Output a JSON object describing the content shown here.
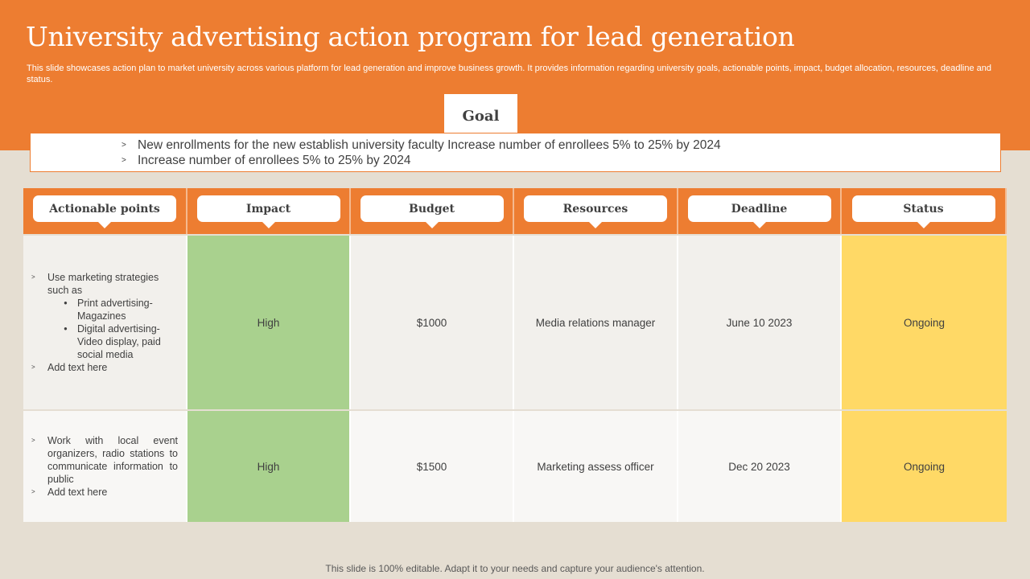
{
  "slide": {
    "title": "University advertising action program for lead generation",
    "subtitle": "This slide showcases action plan to market university across various platform for lead generation and improve business growth. It provides information regarding university goals, actionable points, impact, budget allocation, resources, deadline and status.",
    "footer": "This slide is 100% editable. Adapt it to your needs and capture your audience's attention."
  },
  "goal": {
    "label": "Goal",
    "items": [
      "New enrollments  for  the new establish university  faculty  Increase  number  of enrollees  5% to 25% by 2024",
      "Increase  number  of enrollees  5% to 25% by 2024"
    ]
  },
  "table": {
    "headers": [
      "Actionable points",
      "Impact",
      "Budget",
      "Resources",
      "Deadline",
      "Status"
    ],
    "rows": [
      {
        "actions": {
          "point1": "Use marketing strategies such as",
          "sub1": "Print advertising- Magazines",
          "sub2": "Digital advertising- Video display, paid social media",
          "point2": "Add text here"
        },
        "impact": "High",
        "budget": "$1000",
        "resources": "Media relations manager",
        "deadline": "June 10 2023",
        "status": "Ongoing"
      },
      {
        "actions": {
          "point1": "Work with local event organizers, radio stations to communicate information to public",
          "point2": "Add text here"
        },
        "impact": "High",
        "budget": "$1500",
        "resources": "Marketing assess officer",
        "deadline": "Dec 20 2023",
        "status": "Ongoing"
      }
    ]
  },
  "colors": {
    "accent": "#ed7d31",
    "background": "#e5ded2",
    "impact_high": "#a9d18e",
    "status_ongoing": "#ffd966"
  }
}
